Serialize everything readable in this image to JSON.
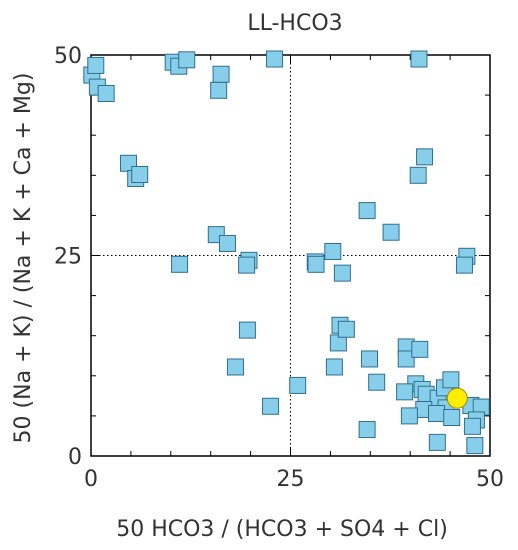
{
  "chart_data": {
    "type": "scatter",
    "title": "LL-HCO3",
    "xlabel": "50 HCO3 / (HCO3 + SO4 + Cl)",
    "ylabel": "50 (Na + K) / (Na + K + Ca + Mg)",
    "xlim": [
      0,
      50
    ],
    "ylim": [
      0,
      50
    ],
    "xticks": [
      "0",
      "25",
      "50"
    ],
    "yticks": [
      "0",
      "25",
      "50"
    ],
    "reference_lines": {
      "x": 25,
      "y": 25,
      "style": "dotted"
    },
    "colors": {
      "square_fill": "#87ceeb",
      "square_stroke": "#2f6f8f",
      "circle_fill": "#ffee00",
      "circle_stroke": "#a08a00"
    },
    "series": [
      {
        "marker": "square",
        "points": [
          [
            0.1,
            47.5
          ],
          [
            0.6,
            48.7
          ],
          [
            0.8,
            46.0
          ],
          [
            1.9,
            45.2
          ],
          [
            10.3,
            49.1
          ],
          [
            11.0,
            48.6
          ],
          [
            12.0,
            49.4
          ],
          [
            16.0,
            45.6
          ],
          [
            16.3,
            47.6
          ],
          [
            23.0,
            49.5
          ],
          [
            41.1,
            49.5
          ],
          [
            4.7,
            36.5
          ],
          [
            5.6,
            34.6
          ],
          [
            6.1,
            35.1
          ],
          [
            41.0,
            35.0
          ],
          [
            41.8,
            37.3
          ],
          [
            34.6,
            30.6
          ],
          [
            37.6,
            27.9
          ],
          [
            15.7,
            27.6
          ],
          [
            17.1,
            26.5
          ],
          [
            11.1,
            23.9
          ],
          [
            19.8,
            24.4
          ],
          [
            19.5,
            23.8
          ],
          [
            28.1,
            24.2
          ],
          [
            28.2,
            23.9
          ],
          [
            30.3,
            25.5
          ],
          [
            31.5,
            22.8
          ],
          [
            47.1,
            24.9
          ],
          [
            46.8,
            23.8
          ],
          [
            19.6,
            15.7
          ],
          [
            18.1,
            11.1
          ],
          [
            22.5,
            6.2
          ],
          [
            25.9,
            8.8
          ],
          [
            31.0,
            14.1
          ],
          [
            31.2,
            16.3
          ],
          [
            32.0,
            15.8
          ],
          [
            30.5,
            11.1
          ],
          [
            34.9,
            12.1
          ],
          [
            35.8,
            9.2
          ],
          [
            34.6,
            3.3
          ],
          [
            39.5,
            13.6
          ],
          [
            39.5,
            12.1
          ],
          [
            41.2,
            13.3
          ],
          [
            40.7,
            9.0
          ],
          [
            41.5,
            8.3
          ],
          [
            39.3,
            8.0
          ],
          [
            42.0,
            7.7
          ],
          [
            43.5,
            7.2
          ],
          [
            44.3,
            8.5
          ],
          [
            45.1,
            9.5
          ],
          [
            44.5,
            6.0
          ],
          [
            41.7,
            5.8
          ],
          [
            39.9,
            5.0
          ],
          [
            43.3,
            5.3
          ],
          [
            45.2,
            4.8
          ],
          [
            43.4,
            1.7
          ],
          [
            47.6,
            6.3
          ],
          [
            48.9,
            6.1
          ],
          [
            48.3,
            4.5
          ],
          [
            47.8,
            3.7
          ],
          [
            48.1,
            1.3
          ]
        ]
      },
      {
        "marker": "circle",
        "points": [
          [
            45.9,
            7.2
          ]
        ]
      }
    ]
  }
}
